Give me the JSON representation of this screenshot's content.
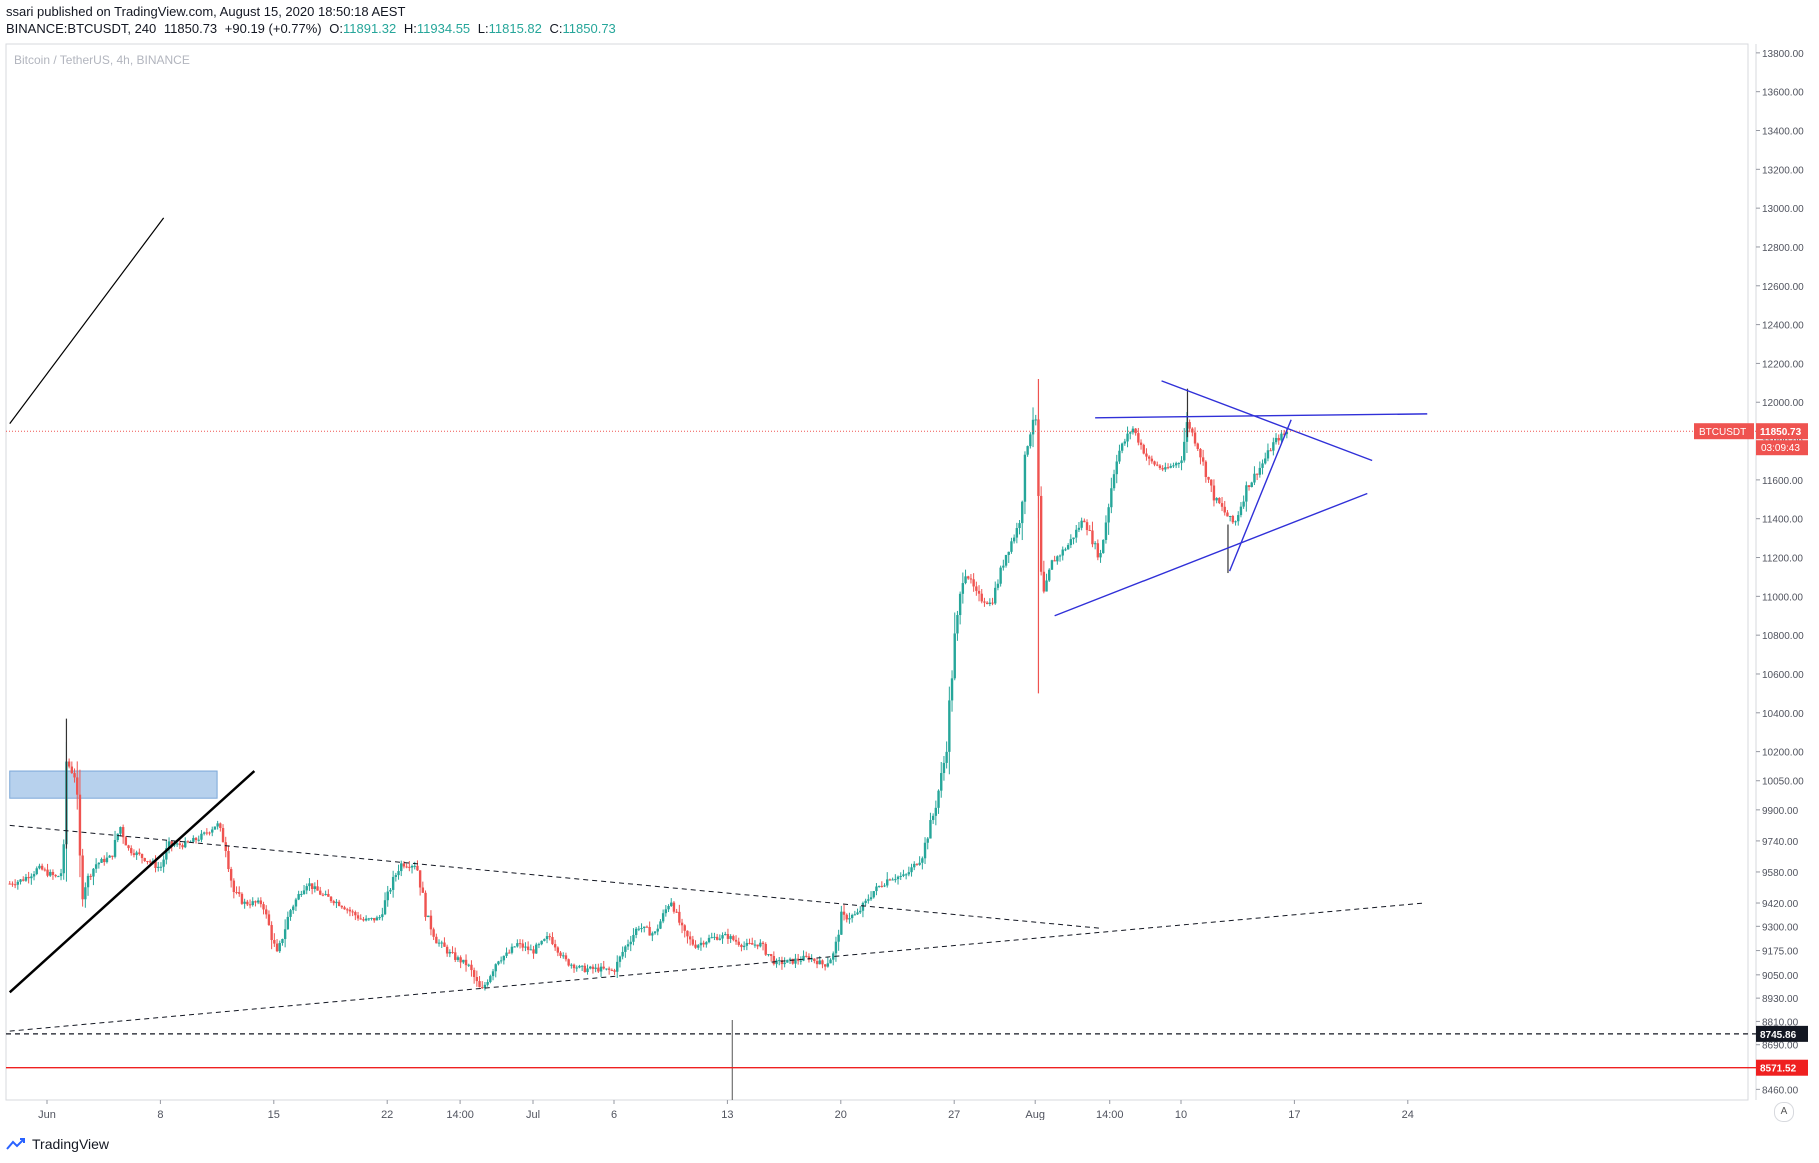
{
  "header": {
    "published_line": "ssari published on TradingView.com, August 15, 2020 18:50:18 AEST",
    "symbol": "BINANCE:BTCUSDT, 240",
    "last": "11850.73",
    "change": "+90.19 (+0.77%)",
    "o_label": "O:",
    "o_value": "11891.32",
    "h_label": "H:",
    "h_value": "11934.55",
    "l_label": "L:",
    "l_value": "11815.82",
    "c_label": "C:",
    "c_value": "11850.73"
  },
  "watermark_title": "Bitcoin / TetherUS, 4h, BINANCE",
  "footer": {
    "brand": "TradingView"
  },
  "axis_auto_label": "A",
  "colors": {
    "up": "#26a69a",
    "down": "#ef5350",
    "pattern_lines": "#3030d8",
    "price_line": "#ef5350",
    "zone_fill": "#9fc2e7",
    "support_line": "#ef2020"
  },
  "chart_data": {
    "type": "candlestick",
    "symbol": "BTCUSDT",
    "interval": "4h",
    "ylim": [
      8400,
      13850
    ],
    "y_ticks": [
      "13800.00",
      "13600.00",
      "13400.00",
      "13200.00",
      "13000.00",
      "12800.00",
      "12600.00",
      "12400.00",
      "12200.00",
      "12000.00",
      "11800.00",
      "11600.00",
      "11400.00",
      "11200.00",
      "11000.00",
      "10800.00",
      "10600.00",
      "10400.00",
      "10200.00",
      "10050.00",
      "9900.00",
      "9740.00",
      "9580.00",
      "9420.00",
      "9300.00",
      "9175.00",
      "9050.00",
      "8930.00",
      "8810.00",
      "8690.00",
      "8460.00"
    ],
    "x_ticks": [
      {
        "label": "Jun",
        "day": 0
      },
      {
        "label": "8",
        "day": 7
      },
      {
        "label": "15",
        "day": 14
      },
      {
        "label": "22",
        "day": 21
      },
      {
        "label": "14:00",
        "day": 25.5
      },
      {
        "label": "Jul",
        "day": 30
      },
      {
        "label": "6",
        "day": 35
      },
      {
        "label": "13",
        "day": 42
      },
      {
        "label": "20",
        "day": 49
      },
      {
        "label": "27",
        "day": 56
      },
      {
        "label": "Aug",
        "day": 61
      },
      {
        "label": "14:00",
        "day": 65.6
      },
      {
        "label": "10",
        "day": 70
      },
      {
        "label": "17",
        "day": 77
      },
      {
        "label": "24",
        "day": 84
      }
    ],
    "day_range": [
      -2.3,
      90
    ],
    "price_anchors": [
      [
        -2.3,
        9520
      ],
      [
        -1.5,
        9540
      ],
      [
        -0.5,
        9600
      ],
      [
        0.6,
        9550
      ],
      [
        1.0,
        9590
      ],
      [
        1.2,
        10150
      ],
      [
        1.8,
        10060
      ],
      [
        2.1,
        9480
      ],
      [
        3,
        9620
      ],
      [
        4,
        9660
      ],
      [
        4.5,
        9820
      ],
      [
        5,
        9700
      ],
      [
        6,
        9650
      ],
      [
        7,
        9600
      ],
      [
        7.5,
        9720
      ],
      [
        8.5,
        9720
      ],
      [
        9.5,
        9760
      ],
      [
        10.5,
        9830
      ],
      [
        11,
        9720
      ],
      [
        11.5,
        9480
      ],
      [
        12.2,
        9420
      ],
      [
        13.3,
        9420
      ],
      [
        14.2,
        9150
      ],
      [
        15,
        9380
      ],
      [
        16,
        9530
      ],
      [
        17,
        9460
      ],
      [
        18,
        9420
      ],
      [
        19.5,
        9330
      ],
      [
        20.5,
        9340
      ],
      [
        21.3,
        9520
      ],
      [
        21.8,
        9620
      ],
      [
        22.8,
        9620
      ],
      [
        23.4,
        9370
      ],
      [
        24,
        9230
      ],
      [
        25,
        9150
      ],
      [
        26,
        9100
      ],
      [
        26.8,
        8960
      ],
      [
        27.8,
        9130
      ],
      [
        28.5,
        9160
      ],
      [
        29,
        9210
      ],
      [
        30,
        9170
      ],
      [
        31,
        9250
      ],
      [
        32,
        9120
      ],
      [
        33,
        9080
      ],
      [
        34,
        9080
      ],
      [
        35,
        9070
      ],
      [
        35.6,
        9180
      ],
      [
        36.5,
        9300
      ],
      [
        37.5,
        9260
      ],
      [
        38.5,
        9440
      ],
      [
        39.3,
        9260
      ],
      [
        40,
        9200
      ],
      [
        41,
        9240
      ],
      [
        42,
        9250
      ],
      [
        43,
        9200
      ],
      [
        44,
        9210
      ],
      [
        45,
        9110
      ],
      [
        46,
        9120
      ],
      [
        47,
        9140
      ],
      [
        48,
        9100
      ],
      [
        48.6,
        9160
      ],
      [
        49,
        9340
      ],
      [
        50,
        9360
      ],
      [
        51,
        9480
      ],
      [
        52,
        9550
      ],
      [
        53,
        9560
      ],
      [
        54,
        9660
      ],
      [
        54.8,
        9900
      ],
      [
        55.5,
        10200
      ],
      [
        56,
        10750
      ],
      [
        56.6,
        11150
      ],
      [
        57.4,
        11000
      ],
      [
        58.3,
        10960
      ],
      [
        59.2,
        11220
      ],
      [
        60,
        11370
      ],
      [
        60.5,
        11780
      ],
      [
        61,
        11980
      ],
      [
        61.4,
        10950
      ],
      [
        62,
        11170
      ],
      [
        63,
        11260
      ],
      [
        64,
        11400
      ],
      [
        65,
        11200
      ],
      [
        66,
        11720
      ],
      [
        67,
        11870
      ],
      [
        68,
        11700
      ],
      [
        69,
        11650
      ],
      [
        70,
        11700
      ],
      [
        70.4,
        11900
      ],
      [
        71,
        11780
      ],
      [
        72,
        11520
      ],
      [
        72.8,
        11420
      ],
      [
        73.3,
        11370
      ],
      [
        74,
        11550
      ],
      [
        75,
        11680
      ],
      [
        75.8,
        11800
      ],
      [
        76.3,
        11830
      ],
      [
        76.6,
        11850.73
      ]
    ],
    "special_wicks": [
      {
        "day": 1.2,
        "high": 10370,
        "low": 9700
      },
      {
        "day": 61.2,
        "high": 12120,
        "low": 10500
      },
      {
        "day": 72.9,
        "high": 11370,
        "low": 11120
      },
      {
        "day": 70.4,
        "high": 12070,
        "low": 11820
      }
    ],
    "current_price": 11850.73,
    "current_price_label": "BTCUSDT",
    "current_price_value": "11850.73",
    "countdown": "03:09:43",
    "level_lines": [
      {
        "value": 8745.86,
        "label": "8745.86",
        "style": "dashed",
        "color": "#131722"
      },
      {
        "value": 8571.52,
        "label": "8571.52",
        "style": "solid",
        "color": "#ef2020"
      }
    ],
    "drawings": {
      "zone": {
        "day1": -2.3,
        "day2": 10.5,
        "p1": 9960,
        "p2": 10100
      },
      "black_trend_short": {
        "d1": -2.3,
        "p1": 8960,
        "d2": 12.8,
        "p2": 10100
      },
      "black_line_upper": {
        "d1": -2.3,
        "p1": 11890,
        "d2": 7.2,
        "p2": 12950
      },
      "dashed_down": {
        "d1": -2.3,
        "p1": 9820,
        "d2": 65,
        "p2": 9290
      },
      "dashed_up": {
        "d1": -2.3,
        "p1": 8760,
        "d2": 85,
        "p2": 9420
      },
      "triangle_upper": {
        "d1": 68.8,
        "p1": 12110,
        "d2": 81.8,
        "p2": 11700
      },
      "triangle_lower": {
        "d1": 62.2,
        "p1": 10900,
        "d2": 81.5,
        "p2": 11530
      },
      "horizontal_top": {
        "d1": 64.7,
        "p1": 11920,
        "d2": 85.2,
        "p2": 11940
      },
      "steep_line": {
        "d1": 73.0,
        "p1": 11130,
        "d2": 76.8,
        "p2": 11910
      }
    }
  }
}
